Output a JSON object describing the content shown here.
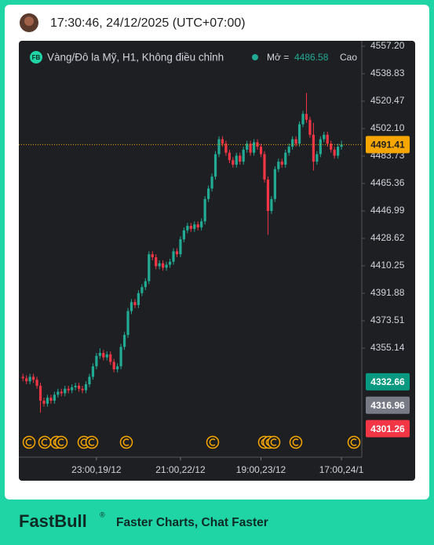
{
  "header": {
    "time": "17:30:46, 24/12/2025 (UTC+07:00)"
  },
  "chart_data": {
    "type": "candlestick",
    "legend": {
      "badge": "FB",
      "name": "Vàng/Đô la Mỹ, H1, Không điều chỉnh",
      "open_label": "Mở =",
      "open": 4486.58,
      "high_label": "Cao"
    },
    "categories": [
      null,
      null,
      null,
      null,
      null,
      null,
      null,
      null,
      null,
      null,
      null,
      null,
      null,
      null,
      null,
      null,
      null,
      null,
      null,
      null,
      null,
      "23:00,19/12",
      null,
      null,
      null,
      null,
      null,
      null,
      null,
      null,
      null,
      null,
      null,
      null,
      null,
      null,
      null,
      null,
      null,
      null,
      null,
      null,
      null,
      null,
      null,
      "21:00,22/12",
      null,
      null,
      null,
      null,
      null,
      null,
      null,
      null,
      null,
      null,
      null,
      null,
      null,
      null,
      null,
      null,
      null,
      null,
      null,
      null,
      null,
      null,
      "19:00,23/12",
      null,
      null,
      null,
      null,
      null,
      null,
      null,
      null,
      null,
      null,
      null,
      null,
      null,
      null,
      null,
      null,
      null,
      null,
      null,
      null,
      null,
      null,
      "17:00,24/1"
    ],
    "open": [
      4336,
      4335,
      4333,
      4336,
      4334,
      4330,
      4320,
      4318,
      4322,
      4320,
      4324,
      4326,
      4325,
      4328,
      4327,
      4329,
      4330,
      4328,
      4327,
      4331,
      4336,
      4343,
      4350,
      4352,
      4349,
      4351,
      4346,
      4341,
      4343,
      4356,
      4364,
      4380,
      4386,
      4384,
      4392,
      4396,
      4400,
      4418,
      4416,
      4410,
      4412,
      4409,
      4411,
      4413,
      4420,
      4418,
      4428,
      4434,
      4437,
      4435,
      4438,
      4436,
      4440,
      4455,
      4462,
      4470,
      4485,
      4495,
      4492,
      4486,
      4481,
      4478,
      4484,
      4480,
      4488,
      4492,
      4486,
      4493,
      4490,
      4485,
      4468,
      4447,
      4455,
      4475,
      4480,
      4478,
      4486,
      4490,
      4495,
      4492,
      4505,
      4512,
      4508,
      4498,
      4480,
      4485,
      4495,
      4498,
      4492,
      4488,
      4484,
      4490
    ],
    "high": [
      4338,
      4337,
      4338,
      4338,
      4336,
      4332,
      4322,
      4324,
      4324,
      4326,
      4328,
      4328,
      4330,
      4330,
      4331,
      4332,
      4332,
      4330,
      4333,
      4338,
      4345,
      4352,
      4355,
      4354,
      4353,
      4353,
      4348,
      4345,
      4358,
      4366,
      4382,
      4388,
      4388,
      4394,
      4398,
      4402,
      4420,
      4420,
      4418,
      4414,
      4414,
      4413,
      4415,
      4422,
      4422,
      4430,
      4436,
      4439,
      4439,
      4440,
      4440,
      4442,
      4457,
      4464,
      4472,
      4487,
      4497,
      4497,
      4494,
      4488,
      4483,
      4486,
      4486,
      4490,
      4494,
      4494,
      4495,
      4495,
      4492,
      4487,
      4470,
      4457,
      4477,
      4482,
      4482,
      4488,
      4492,
      4497,
      4497,
      4507,
      4514,
      4526,
      4510,
      4506,
      4487,
      4497,
      4500,
      4500,
      4494,
      4490,
      4492,
      4494
    ],
    "low": [
      4333,
      4331,
      4331,
      4332,
      4328,
      4312,
      4316,
      4316,
      4318,
      4318,
      4322,
      4323,
      4323,
      4325,
      4325,
      4327,
      4326,
      4325,
      4325,
      4329,
      4334,
      4341,
      4348,
      4347,
      4347,
      4344,
      4339,
      4339,
      4341,
      4354,
      4362,
      4378,
      4382,
      4382,
      4390,
      4394,
      4398,
      4414,
      4408,
      4408,
      4407,
      4407,
      4409,
      4411,
      4416,
      4416,
      4426,
      4432,
      4433,
      4433,
      4434,
      4434,
      4438,
      4453,
      4460,
      4468,
      4483,
      4490,
      4484,
      4479,
      4476,
      4476,
      4478,
      4478,
      4486,
      4484,
      4484,
      4488,
      4483,
      4466,
      4431,
      4445,
      4453,
      4473,
      4476,
      4476,
      4484,
      4488,
      4490,
      4490,
      4503,
      4506,
      4496,
      4474,
      4478,
      4483,
      4493,
      4490,
      4486,
      4482,
      4482,
      4488
    ],
    "close": [
      4335,
      4333,
      4336,
      4334,
      4330,
      4320,
      4318,
      4322,
      4320,
      4324,
      4326,
      4325,
      4328,
      4327,
      4329,
      4330,
      4328,
      4327,
      4331,
      4336,
      4343,
      4350,
      4352,
      4349,
      4351,
      4346,
      4341,
      4343,
      4356,
      4364,
      4380,
      4386,
      4384,
      4392,
      4396,
      4400,
      4418,
      4416,
      4410,
      4412,
      4409,
      4411,
      4413,
      4420,
      4418,
      4428,
      4434,
      4437,
      4435,
      4438,
      4436,
      4440,
      4455,
      4462,
      4470,
      4485,
      4495,
      4492,
      4486,
      4481,
      4478,
      4484,
      4480,
      4488,
      4492,
      4486,
      4493,
      4490,
      4485,
      4468,
      4447,
      4455,
      4475,
      4480,
      4478,
      4486,
      4490,
      4495,
      4492,
      4505,
      4512,
      4508,
      4498,
      4480,
      4485,
      4495,
      4498,
      4492,
      4488,
      4484,
      4490,
      4491.41
    ],
    "up_color": "#22ab94",
    "down_color": "#f23645",
    "ylim": [
      4282.2,
      4560.9
    ],
    "yticks": [
      {
        "value": 4557.2,
        "label": "4557.20"
      },
      4538.83,
      4520.47,
      {
        "value": 4502.1,
        "label": "4502.10"
      },
      4483.73,
      4465.36,
      4446.99,
      4428.62,
      4410.25,
      4391.88,
      4373.51,
      4355.14
    ],
    "grid": false,
    "price_labels": [
      {
        "value": 4491.41,
        "color": "#f7a600"
      },
      {
        "value": 4332.66,
        "color": "#089981"
      },
      {
        "value": 4316.96,
        "color": "#787b86"
      },
      {
        "value": 4301.26,
        "color": "#f23645"
      }
    ]
  },
  "footer": {
    "brand": "FastBull",
    "mark": "®",
    "tagline": "Faster Charts, Chat Faster"
  }
}
